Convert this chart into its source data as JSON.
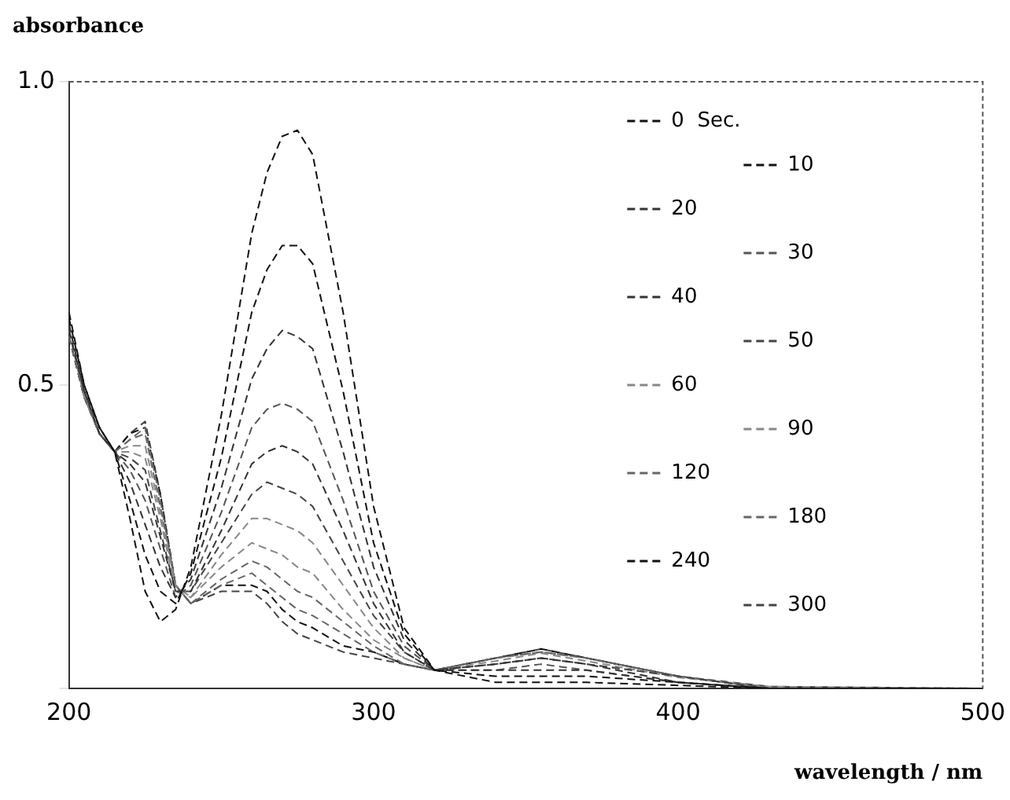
{
  "chart_data": {
    "type": "line",
    "ylabel": "absorbance",
    "xlabel": "wavelength / nm",
    "x": [
      200,
      205,
      210,
      215,
      220,
      225,
      230,
      235,
      240,
      250,
      260,
      265,
      270,
      275,
      280,
      290,
      300,
      310,
      320,
      340,
      355,
      370,
      400,
      430,
      500
    ],
    "xlim": [
      200,
      500
    ],
    "xticks": [
      200,
      300,
      400,
      500
    ],
    "ylim": [
      0,
      1
    ],
    "yticks": [
      {
        "value": 0,
        "label": null
      },
      0.5,
      {
        "value": 1,
        "label": "1.0"
      }
    ],
    "grid": false,
    "legend": "top right",
    "line_style": "dashed",
    "series": [
      {
        "name": "0  Sec.",
        "color": "#111111",
        "values": [
          0.62,
          0.5,
          0.43,
          0.39,
          0.28,
          0.16,
          0.11,
          0.13,
          0.2,
          0.45,
          0.75,
          0.85,
          0.91,
          0.92,
          0.88,
          0.62,
          0.3,
          0.1,
          0.03,
          0.01,
          0.01,
          0.01,
          0.005,
          0,
          0
        ]
      },
      {
        "name": "10",
        "color": "#111111",
        "values": [
          0.61,
          0.5,
          0.43,
          0.39,
          0.31,
          0.22,
          0.16,
          0.14,
          0.19,
          0.38,
          0.62,
          0.69,
          0.73,
          0.73,
          0.7,
          0.49,
          0.24,
          0.09,
          0.03,
          0.02,
          0.02,
          0.02,
          0.01,
          0,
          0
        ]
      },
      {
        "name": "20",
        "color": "#333333",
        "values": [
          0.6,
          0.49,
          0.43,
          0.39,
          0.34,
          0.27,
          0.2,
          0.15,
          0.18,
          0.33,
          0.51,
          0.56,
          0.59,
          0.58,
          0.56,
          0.39,
          0.2,
          0.08,
          0.03,
          0.03,
          0.03,
          0.03,
          0.01,
          0,
          0
        ]
      },
      {
        "name": "30",
        "color": "#555555",
        "values": [
          0.6,
          0.49,
          0.42,
          0.39,
          0.36,
          0.31,
          0.23,
          0.15,
          0.17,
          0.29,
          0.43,
          0.46,
          0.47,
          0.46,
          0.44,
          0.31,
          0.16,
          0.07,
          0.03,
          0.03,
          0.04,
          0.03,
          0.01,
          0,
          0
        ]
      },
      {
        "name": "40",
        "color": "#333333",
        "values": [
          0.59,
          0.49,
          0.42,
          0.39,
          0.37,
          0.34,
          0.25,
          0.16,
          0.16,
          0.26,
          0.37,
          0.39,
          0.4,
          0.39,
          0.37,
          0.26,
          0.14,
          0.06,
          0.03,
          0.04,
          0.05,
          0.04,
          0.01,
          0,
          0
        ]
      },
      {
        "name": "50",
        "color": "#444444",
        "values": [
          0.59,
          0.49,
          0.42,
          0.39,
          0.38,
          0.36,
          0.26,
          0.16,
          0.16,
          0.24,
          0.32,
          0.34,
          0.33,
          0.32,
          0.3,
          0.21,
          0.12,
          0.06,
          0.03,
          0.04,
          0.05,
          0.04,
          0.02,
          0,
          0
        ]
      },
      {
        "name": "60",
        "color": "#888888",
        "values": [
          0.59,
          0.48,
          0.42,
          0.39,
          0.39,
          0.38,
          0.28,
          0.16,
          0.15,
          0.22,
          0.28,
          0.28,
          0.27,
          0.26,
          0.24,
          0.17,
          0.1,
          0.05,
          0.03,
          0.04,
          0.05,
          0.04,
          0.02,
          0,
          0
        ]
      },
      {
        "name": "90",
        "color": "#888888",
        "values": [
          0.59,
          0.48,
          0.42,
          0.39,
          0.4,
          0.4,
          0.29,
          0.17,
          0.15,
          0.2,
          0.24,
          0.23,
          0.22,
          0.2,
          0.19,
          0.13,
          0.08,
          0.05,
          0.03,
          0.045,
          0.058,
          0.045,
          0.018,
          0.003,
          0
        ]
      },
      {
        "name": "120",
        "color": "#666666",
        "values": [
          0.58,
          0.48,
          0.42,
          0.39,
          0.41,
          0.42,
          0.3,
          0.17,
          0.14,
          0.18,
          0.21,
          0.2,
          0.18,
          0.16,
          0.15,
          0.11,
          0.07,
          0.04,
          0.03,
          0.05,
          0.06,
          0.05,
          0.02,
          0,
          0
        ]
      },
      {
        "name": "180",
        "color": "#666666",
        "values": [
          0.58,
          0.48,
          0.42,
          0.39,
          0.41,
          0.43,
          0.31,
          0.17,
          0.14,
          0.17,
          0.19,
          0.17,
          0.15,
          0.13,
          0.12,
          0.09,
          0.06,
          0.04,
          0.03,
          0.05,
          0.06,
          0.05,
          0.02,
          0,
          0
        ]
      },
      {
        "name": "240",
        "color": "#111111",
        "values": [
          0.58,
          0.48,
          0.42,
          0.39,
          0.42,
          0.43,
          0.32,
          0.17,
          0.14,
          0.17,
          0.17,
          0.16,
          0.13,
          0.11,
          0.1,
          0.07,
          0.06,
          0.04,
          0.03,
          0.05,
          0.065,
          0.05,
          0.02,
          0,
          0
        ]
      },
      {
        "name": "300",
        "color": "#444444",
        "values": [
          0.58,
          0.48,
          0.42,
          0.39,
          0.42,
          0.44,
          0.32,
          0.17,
          0.14,
          0.16,
          0.16,
          0.14,
          0.11,
          0.09,
          0.08,
          0.06,
          0.05,
          0.04,
          0.03,
          0.05,
          0.065,
          0.05,
          0.02,
          0.003,
          0
        ]
      }
    ]
  }
}
